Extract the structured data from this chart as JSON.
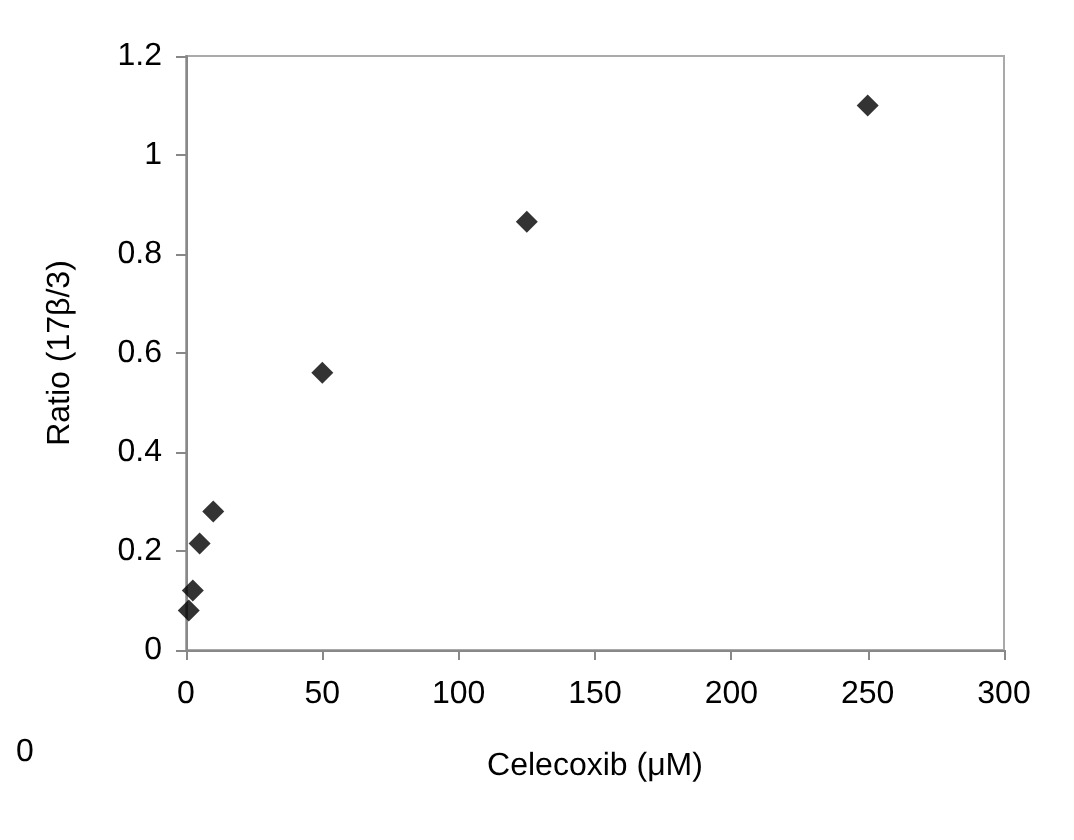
{
  "chart_data": {
    "type": "scatter",
    "xlabel": "Celecoxib (μM)",
    "ylabel": "Ratio (17β/3)",
    "x": [
      1,
      2.5,
      5,
      10,
      50,
      125,
      250
    ],
    "series": [
      {
        "color": "#000000",
        "values": [
          0.08,
          0.12,
          0.215,
          0.28,
          0.56,
          0.865,
          1.1
        ]
      }
    ],
    "xlim": [
      0,
      300
    ],
    "xticks": [
      0,
      50,
      100,
      150,
      200,
      250,
      300
    ],
    "ylim": [
      0,
      1.2
    ],
    "yticks": [
      0,
      0.2,
      0.4,
      0.6,
      0.8,
      1,
      1.2
    ],
    "grid": false,
    "marker": "diamond",
    "annotations": [
      "0"
    ]
  }
}
